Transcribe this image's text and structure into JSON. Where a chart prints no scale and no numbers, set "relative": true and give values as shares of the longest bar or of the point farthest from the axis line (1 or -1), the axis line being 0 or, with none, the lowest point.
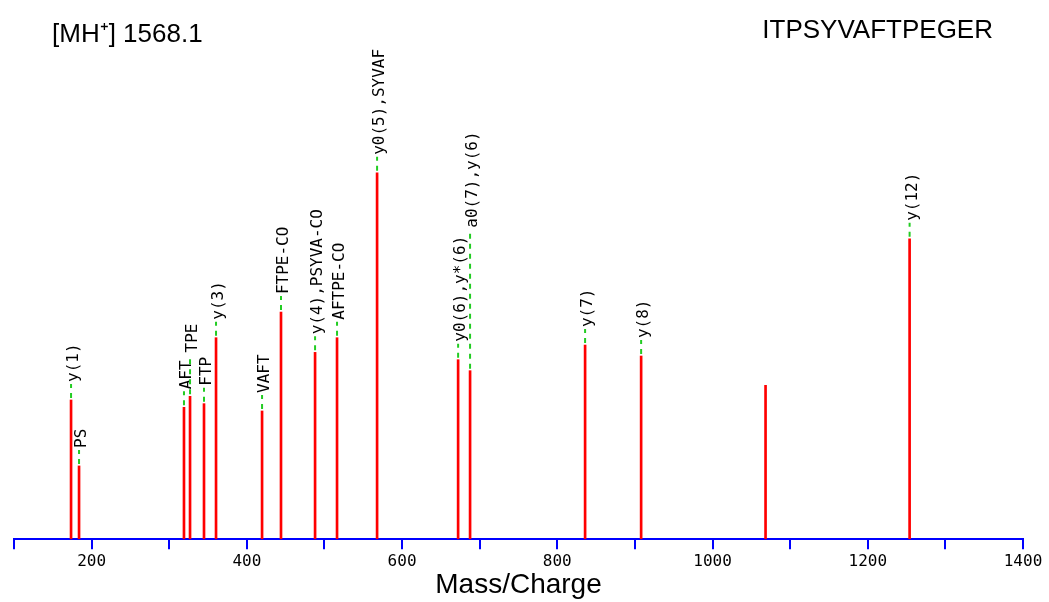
{
  "chart_data": {
    "type": "bar",
    "title": "[MH⁺] 1568.1",
    "subtitle": "ITPSYVAFTPEGER",
    "xlabel": "Mass/Charge",
    "relative": true,
    "color": "#ff0000",
    "grid": false,
    "legend": false,
    "x": [
      173.5,
      183.8,
      319,
      326.8,
      344.8,
      360.3,
      419.6,
      444,
      487.9,
      516.2,
      567.8,
      672.2,
      687.6,
      835.8,
      908,
      1068.3,
      1253.9
    ],
    "values": [
      0.38,
      0.2,
      0.36,
      0.39,
      0.37,
      0.55,
      0.35,
      0.62,
      0.51,
      0.55,
      1,
      0.49,
      0.46,
      0.53,
      0.5,
      0.42,
      0.82
    ],
    "xlim": [
      100,
      1400
    ],
    "xticks": [
      {
        "value": 100,
        "label": null
      },
      200,
      {
        "value": 300,
        "label": null
      },
      400,
      {
        "value": 500,
        "label": null
      },
      600,
      {
        "value": 700,
        "label": null
      },
      800,
      {
        "value": 900,
        "label": null
      },
      1000,
      {
        "value": 1100,
        "label": null
      },
      1200,
      {
        "value": 1300,
        "label": null
      },
      1400
    ],
    "annotations": [
      {
        "text": "y(1)",
        "x": 173.5,
        "y": 0.38
      },
      {
        "text": "PS",
        "x": 183.8,
        "y": 0.2
      },
      {
        "text": "AFT",
        "x": 319,
        "y": 0.36
      },
      {
        "text": "TPE",
        "x": 326.8,
        "y": 0.39
      },
      {
        "text": "FTP",
        "x": 344.8,
        "y": 0.37
      },
      {
        "text": "y(3)",
        "x": 360.3,
        "y": 0.55
      },
      {
        "text": "VAFT",
        "x": 419.6,
        "y": 0.35
      },
      {
        "text": "FTPE-CO",
        "x": 444,
        "y": 0.62
      },
      {
        "text": "y(4),PSYVA-CO",
        "x": 487.9,
        "y": 0.51
      },
      {
        "text": "AFTPE-CO",
        "x": 516.2,
        "y": 0.55
      },
      {
        "text": "y0(5),SYVAF",
        "x": 567.8,
        "y": 1
      },
      {
        "text": "y0(6),y*(6)",
        "x": 672.2,
        "y": 0.49
      },
      {
        "text": "a0(7),y(6)",
        "x": 687.6,
        "y": 0.46
      },
      {
        "text": "y(7)",
        "x": 835.8,
        "y": 0.53
      },
      {
        "text": "y(8)",
        "x": 908,
        "y": 0.5
      },
      {
        "text": "y(12)",
        "x": 1253.9,
        "y": 0.82
      }
    ]
  }
}
